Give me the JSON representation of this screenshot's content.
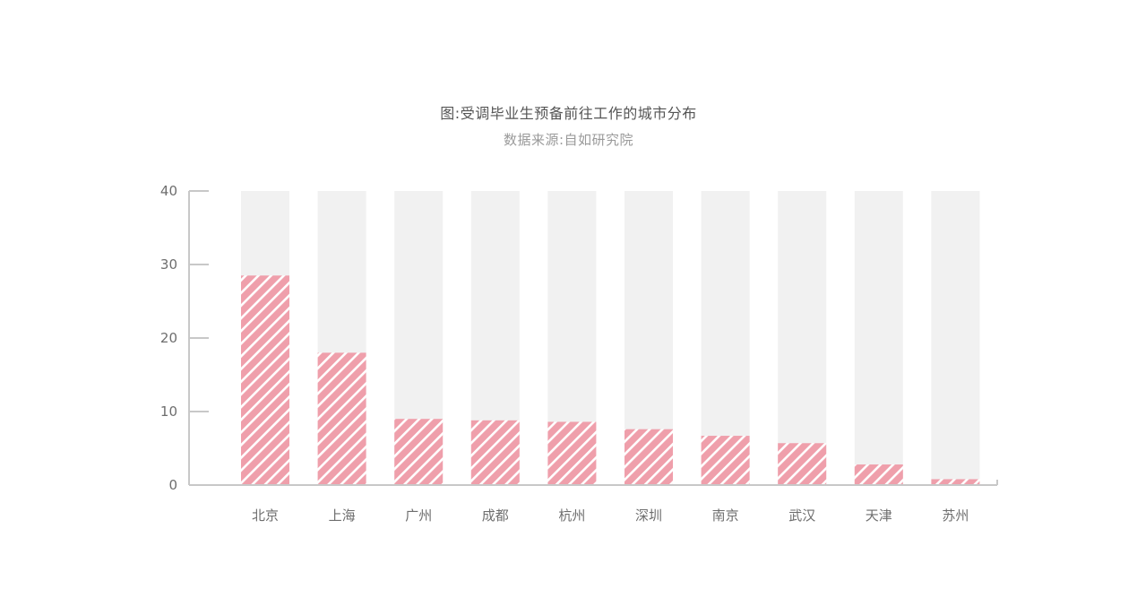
{
  "chart_data": {
    "type": "bar",
    "title": "图:受调毕业生预备前往工作的城市分布",
    "subtitle": "数据来源:自如研究院",
    "xlabel": "",
    "ylabel": "",
    "ylim": [
      0,
      40
    ],
    "yticks": [
      0,
      10,
      20,
      30,
      40
    ],
    "grid": false,
    "categories": [
      "北京",
      "上海",
      "广州",
      "成都",
      "杭州",
      "深圳",
      "南京",
      "武汉",
      "天津",
      "苏州"
    ],
    "values": [
      28.5,
      18,
      9,
      8.8,
      8.6,
      7.6,
      6.7,
      5.7,
      2.8,
      0.8
    ],
    "background_max": 40,
    "colors": {
      "bar_fill": "#ef9fab",
      "bar_hatch": "#ffffff",
      "bar_background": "#f1f1f1",
      "axis": "#c8c8c8",
      "text": "#6e6e6e"
    }
  }
}
